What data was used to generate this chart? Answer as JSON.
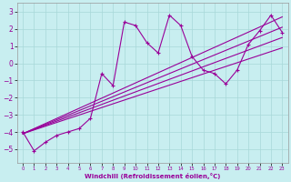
{
  "xlabel": "Windchill (Refroidissement éolien,°C)",
  "bg_color": "#c8eef0",
  "grid_color": "#a8d8d8",
  "line_color": "#990099",
  "x_data": [
    0,
    1,
    2,
    3,
    4,
    5,
    6,
    7,
    8,
    9,
    10,
    11,
    12,
    13,
    14,
    15,
    16,
    17,
    18,
    19,
    20,
    21,
    22,
    23
  ],
  "y_jagged": [
    -4.0,
    -5.1,
    -4.6,
    -4.2,
    -4.0,
    -3.8,
    -3.2,
    -0.6,
    -1.3,
    2.4,
    2.2,
    1.2,
    0.6,
    2.8,
    2.2,
    0.4,
    -0.4,
    -0.6,
    -1.2,
    -0.4,
    1.1,
    1.9,
    2.8,
    1.8
  ],
  "straight_lines": [
    [
      0,
      -4.1,
      23,
      2.7
    ],
    [
      0,
      -4.1,
      23,
      2.1
    ],
    [
      0,
      -4.1,
      23,
      1.5
    ],
    [
      0,
      -4.1,
      23,
      0.9
    ]
  ],
  "ylim": [
    -5.8,
    3.5
  ],
  "xlim": [
    -0.5,
    23.5
  ],
  "yticks": [
    -5,
    -4,
    -3,
    -2,
    -1,
    0,
    1,
    2,
    3
  ],
  "xticks": [
    0,
    1,
    2,
    3,
    4,
    5,
    6,
    7,
    8,
    9,
    10,
    11,
    12,
    13,
    14,
    15,
    16,
    17,
    18,
    19,
    20,
    21,
    22,
    23
  ],
  "figsize": [
    3.2,
    2.0
  ],
  "dpi": 100
}
